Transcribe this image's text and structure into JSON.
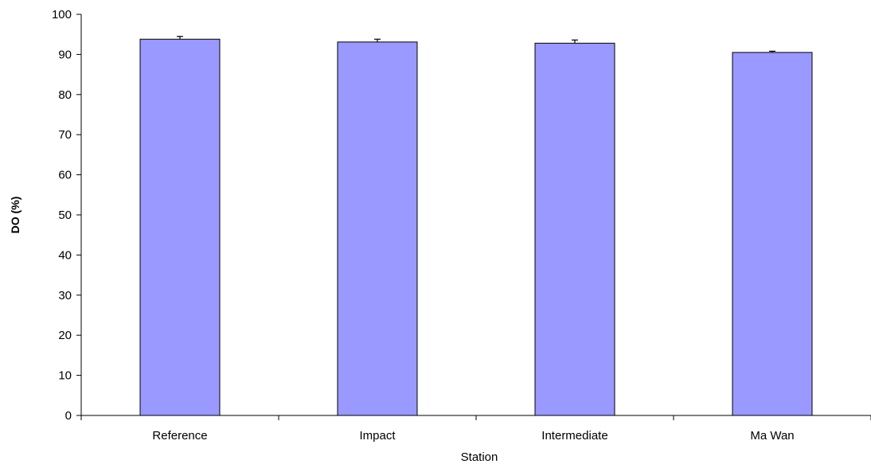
{
  "chart_data": {
    "type": "bar",
    "title": "",
    "xlabel": "Station",
    "ylabel": "DO (%)",
    "categories": [
      "Reference",
      "Impact",
      "Intermediate",
      "Ma Wan"
    ],
    "values": [
      93.8,
      93.1,
      92.8,
      90.5
    ],
    "error": [
      0.7,
      0.7,
      0.8,
      0.3
    ],
    "ylim": [
      0,
      100
    ],
    "yticks": [
      0,
      10,
      20,
      30,
      40,
      50,
      60,
      70,
      80,
      90,
      100
    ],
    "grid": false,
    "bar_color": "#9999ff",
    "border_color": "#000000"
  }
}
